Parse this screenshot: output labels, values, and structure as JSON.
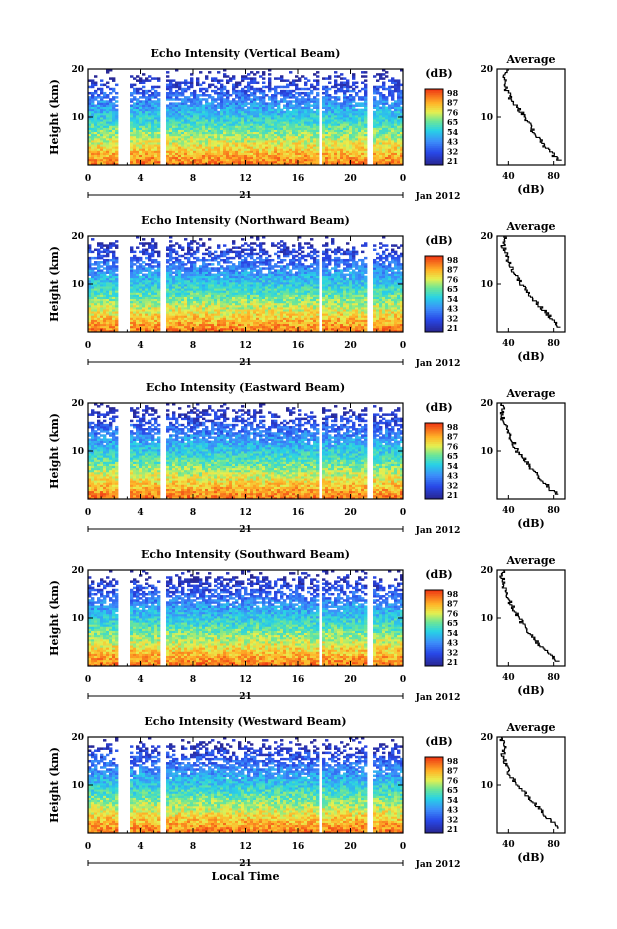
{
  "chart_data": {
    "type": "heatmap",
    "xlabel": "Local Time",
    "date_label": "Jan 2012",
    "day_label": "21",
    "x_ticks": [
      "0",
      "4",
      "8",
      "12",
      "16",
      "20",
      "0"
    ],
    "xlim": [
      0,
      24
    ],
    "y_label": "Height (km)",
    "y_ticks": [
      "20",
      "10"
    ],
    "ylim": [
      0,
      20
    ],
    "colorbar_unit": "(dB)",
    "colorbar_ticks": [
      "98",
      "87",
      "76",
      "65",
      "54",
      "43",
      "32",
      "21"
    ],
    "colorbar_colors": [
      "#ff0000",
      "#ff8000",
      "#ffff00",
      "#80ff80",
      "#00ffff",
      "#0080ff",
      "#0000ff",
      "#000080"
    ],
    "average_title": "Average",
    "average_xlabel": "(dB)",
    "data_gaps_hours": [
      [
        2.3,
        3.3
      ],
      [
        5.6,
        5.9
      ],
      [
        17.6,
        17.9
      ],
      [
        21.2,
        21.6
      ]
    ],
    "panels": [
      {
        "title": "Echo Intensity (Vertical Beam)",
        "colorbar_ticks": [
          "98",
          "87",
          "76",
          "65",
          "54",
          "43",
          "32",
          "21"
        ],
        "average_xticks": [
          "40",
          "80"
        ],
        "average_xlim": [
          30,
          90
        ],
        "average_profile": {
          "height_km": [
            1,
            2,
            3,
            4,
            5,
            6,
            7,
            8,
            9,
            10,
            11,
            12,
            13,
            14,
            15,
            16,
            17,
            18,
            19,
            20
          ],
          "db": [
            86,
            80,
            78,
            72,
            70,
            66,
            62,
            60,
            58,
            54,
            52,
            48,
            45,
            42,
            40,
            38,
            36,
            38,
            35,
            40
          ]
        }
      },
      {
        "title": "Echo Intensity (Northward Beam)",
        "colorbar_ticks": [
          "98",
          "87",
          "76",
          "65",
          "54",
          "43",
          "32",
          "21"
        ],
        "average_xticks": [
          "40",
          "80"
        ],
        "average_xlim": [
          30,
          90
        ],
        "average_profile": {
          "height_km": [
            1,
            2,
            3,
            4,
            5,
            6,
            7,
            8,
            9,
            10,
            11,
            12,
            13,
            14,
            15,
            16,
            17,
            18,
            19,
            20
          ],
          "db": [
            86,
            82,
            78,
            74,
            70,
            66,
            62,
            58,
            55,
            52,
            49,
            46,
            44,
            42,
            40,
            38,
            37,
            35,
            37,
            36
          ]
        }
      },
      {
        "title": "Echo Intensity (Eastward Beam)",
        "colorbar_ticks": [
          "98",
          "87",
          "76",
          "65",
          "54",
          "43",
          "32",
          "21"
        ],
        "average_xticks": [
          "40",
          "80"
        ],
        "average_xlim": [
          30,
          90
        ],
        "average_profile": {
          "height_km": [
            1,
            2,
            3,
            4,
            5,
            6,
            7,
            8,
            9,
            10,
            11,
            12,
            13,
            14,
            15,
            16,
            17,
            18,
            19,
            20
          ],
          "db": [
            84,
            78,
            74,
            70,
            66,
            62,
            58,
            55,
            52,
            48,
            46,
            44,
            42,
            40,
            38,
            36,
            35,
            34,
            35,
            34
          ]
        }
      },
      {
        "title": "Echo Intensity (Southward Beam)",
        "colorbar_ticks": [
          "98",
          "87",
          "76",
          "65",
          "54",
          "43",
          "32",
          "21"
        ],
        "average_xticks": [
          "40",
          "80"
        ],
        "average_xlim": [
          30,
          90
        ],
        "average_profile": {
          "height_km": [
            1,
            2,
            3,
            4,
            5,
            6,
            7,
            8,
            9,
            10,
            11,
            12,
            13,
            14,
            15,
            16,
            17,
            18,
            19,
            20
          ],
          "db": [
            84,
            80,
            74,
            70,
            66,
            62,
            58,
            55,
            52,
            50,
            47,
            45,
            42,
            40,
            38,
            37,
            36,
            35,
            34,
            36
          ]
        }
      },
      {
        "title": "Echo Intensity (Westward Beam)",
        "colorbar_ticks": [
          "98",
          "87",
          "76",
          "65",
          "54",
          "43",
          "32",
          "21"
        ],
        "average_xticks": [
          "40",
          "80"
        ],
        "average_xlim": [
          30,
          90
        ],
        "average_profile": {
          "height_km": [
            1,
            2,
            3,
            4,
            5,
            6,
            7,
            8,
            9,
            10,
            11,
            12,
            13,
            14,
            15,
            16,
            17,
            18,
            19,
            20
          ],
          "db": [
            84,
            82,
            76,
            72,
            68,
            64,
            60,
            56,
            52,
            48,
            45,
            42,
            40,
            38,
            37,
            36,
            35,
            36,
            35,
            34
          ]
        }
      }
    ]
  }
}
